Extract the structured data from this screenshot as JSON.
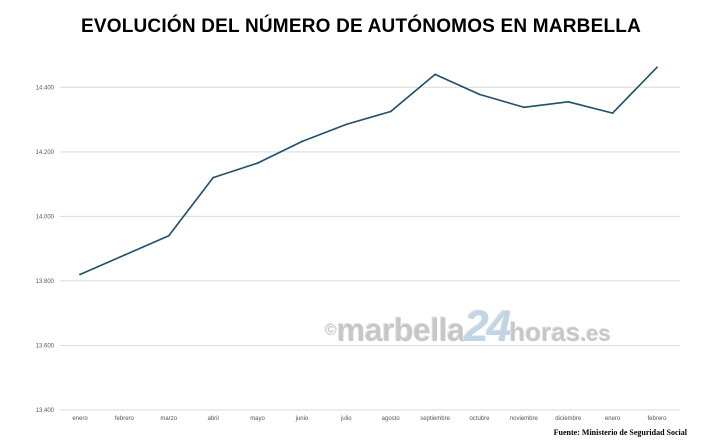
{
  "title": "EVOLUCIÓN DEL NÚMERO DE AUTÓNOMOS EN MARBELLA",
  "source": "Fuente: Ministerio de Seguridad Social",
  "watermark": {
    "copyright": "©",
    "part1": "marbella",
    "part2": "24",
    "part3": "horas",
    "part4": ".es"
  },
  "colors": {
    "line": "#1f4e6b",
    "grid": "#d9d9d9",
    "watermark_accent": "#8fb3d0"
  },
  "chart_data": {
    "type": "line",
    "title": "EVOLUCIÓN DEL NÚMERO DE AUTÓNOMOS EN MARBELLA",
    "categories": [
      "enero",
      "febrero",
      "marzo",
      "abril",
      "mayo",
      "junio",
      "julio",
      "agosto",
      "septiembre",
      "octubre",
      "noviembre",
      "diciembre",
      "enero",
      "febrero"
    ],
    "values": [
      13820,
      13880,
      13940,
      14120,
      14165,
      14232,
      14285,
      14325,
      14440,
      14378,
      14338,
      14355,
      14320,
      14462
    ],
    "yticks": [
      13400,
      13600,
      13800,
      14000,
      14200,
      14400
    ],
    "ytick_labels": [
      "13.400",
      "13.600",
      "13.800",
      "14.000",
      "14.200",
      "14.400"
    ],
    "ylim": [
      13400,
      14500
    ],
    "grid": true,
    "legend": "none"
  }
}
